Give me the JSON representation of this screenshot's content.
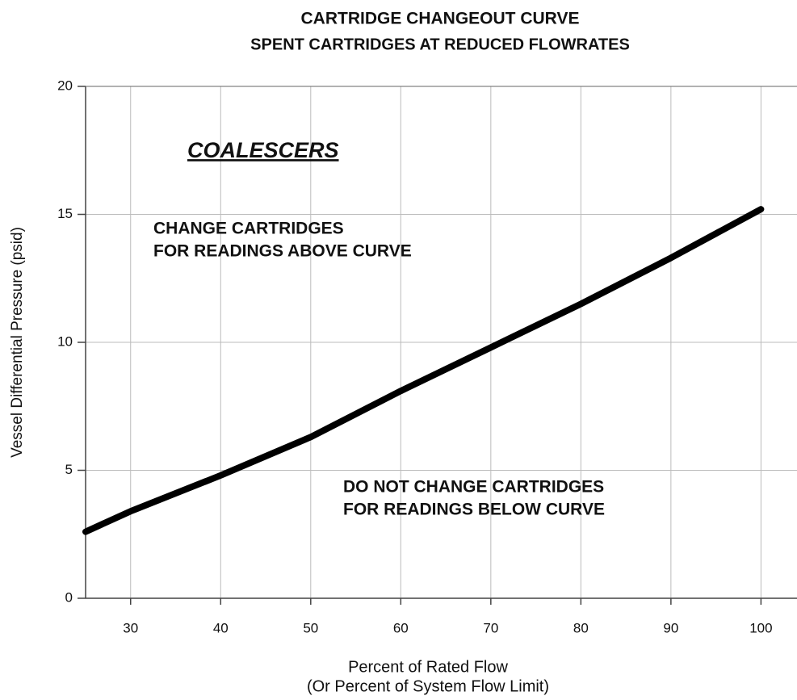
{
  "chart_data": {
    "type": "line",
    "title": "CARTRIDGE CHANGEOUT CURVE",
    "subtitle": "SPENT CARTRIDGES AT REDUCED FLOWRATES",
    "y_label": "Vessel Differential Pressure (psid)",
    "x_label": "Percent of Rated Flow",
    "x_label_note": "(Or Percent of System Flow Limit)",
    "annotations": [
      "COALESCERS",
      "CHANGE CARTRIDGES",
      "FOR READINGS ABOVE CURVE",
      "DO NOT CHANGE CARTRIDGES",
      "FOR READINGS BELOW CURVE"
    ],
    "x": [
      25,
      30,
      40,
      50,
      60,
      70,
      80,
      90,
      100
    ],
    "series": [
      {
        "name": "Coalescers",
        "color": "#000000",
        "values": [
          2.6,
          3.4,
          4.8,
          6.3,
          8.1,
          9.8,
          11.5,
          13.3,
          15.2
        ]
      }
    ],
    "xlim": [
      25,
      104
    ],
    "ylim": [
      0,
      20
    ],
    "xticks": [
      30,
      40,
      50,
      60,
      70,
      80,
      90,
      100
    ],
    "yticks": [
      0,
      5,
      10,
      15,
      20
    ],
    "grid": true
  }
}
